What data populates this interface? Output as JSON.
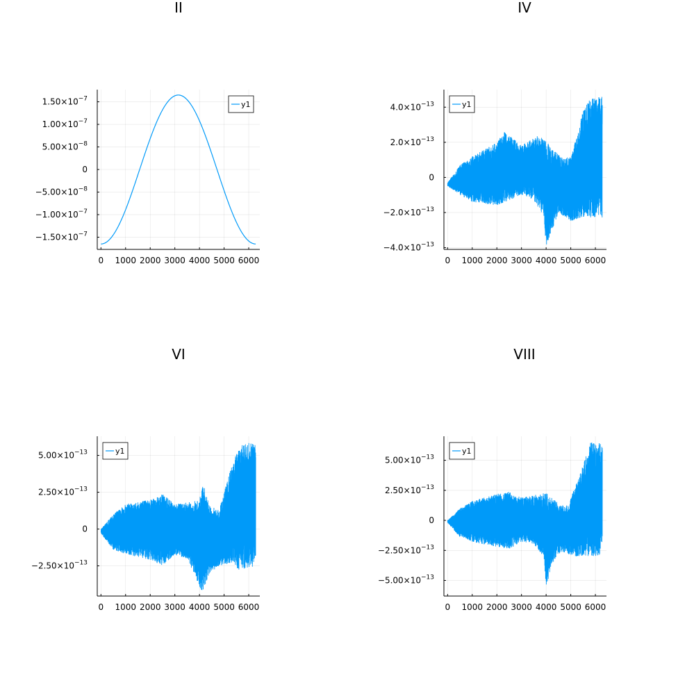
{
  "chart_data": [
    {
      "type": "line",
      "title": "II",
      "xlim": [
        -150,
        6450
      ],
      "ylim": [
        -1.77e-07,
        1.77e-07
      ],
      "x_ticks": [
        0,
        1000,
        2000,
        3000,
        4000,
        5000,
        6000
      ],
      "x_tick_labels": [
        "0",
        "1000",
        "2000",
        "3000",
        "4000",
        "5000",
        "6000"
      ],
      "y_ticks": [
        -1.5e-07,
        -1e-07,
        -5e-08,
        0,
        5e-08,
        1e-07,
        1.5e-07
      ],
      "y_tick_mantissas": [
        "−1.50×10",
        "−1.00×10",
        "−5.00×10",
        "0",
        "5.00×10",
        "1.00×10",
        "1.50×10"
      ],
      "y_tick_exponents": [
        "−7",
        "−7",
        "−8",
        "",
        "−8",
        "−7",
        "−7"
      ],
      "grid": true,
      "legend": "top-right",
      "series": [
        {
          "name": "y1",
          "kind": "cosine",
          "amplitude": 1.65e-07,
          "x_start": 0,
          "x_end": 6283,
          "color": "#009af9"
        }
      ]
    },
    {
      "type": "line",
      "title": "IV",
      "xlim": [
        -150,
        6450
      ],
      "ylim": [
        -4.1e-13,
        5e-13
      ],
      "x_ticks": [
        0,
        1000,
        2000,
        3000,
        4000,
        5000,
        6000
      ],
      "x_tick_labels": [
        "0",
        "1000",
        "2000",
        "3000",
        "4000",
        "5000",
        "6000"
      ],
      "y_ticks": [
        -4e-13,
        -2e-13,
        0,
        2e-13,
        4e-13
      ],
      "y_tick_mantissas": [
        "−4.0×10",
        "−2.0×10",
        "0",
        "2.0×10",
        "4.0×10"
      ],
      "y_tick_exponents": [
        "−13",
        "−13",
        "",
        "−13",
        "−13"
      ],
      "grid": true,
      "legend": "top-left",
      "series": [
        {
          "name": "y1",
          "kind": "noise_band",
          "x_start": 0,
          "x_end": 6283,
          "color": "#009af9",
          "upper_envelope": [
            [
              0,
              -3e-14
            ],
            [
              500,
              7e-14
            ],
            [
              1000,
              1.2e-13
            ],
            [
              2000,
              2e-13
            ],
            [
              2300,
              2.6e-13
            ],
            [
              2700,
              2.2e-13
            ],
            [
              3000,
              1.8e-13
            ],
            [
              3300,
              2.1e-13
            ],
            [
              3600,
              2.4e-13
            ],
            [
              3900,
              2.2e-13
            ],
            [
              4300,
              1.6e-13
            ],
            [
              4700,
              1.1e-13
            ],
            [
              5000,
              1.2e-13
            ],
            [
              5200,
              2.2e-13
            ],
            [
              5500,
              3.8e-13
            ],
            [
              5800,
              4.5e-13
            ],
            [
              6283,
              4.6e-13
            ]
          ],
          "lower_envelope": [
            [
              0,
              -5e-14
            ],
            [
              500,
              -1e-13
            ],
            [
              1000,
              -1.4e-13
            ],
            [
              2000,
              -1.6e-13
            ],
            [
              2500,
              -1.3e-13
            ],
            [
              3000,
              -1e-13
            ],
            [
              3500,
              -1.3e-13
            ],
            [
              3900,
              -2.2e-13
            ],
            [
              4000,
              -3.9e-13
            ],
            [
              4200,
              -3.2e-13
            ],
            [
              4500,
              -2e-13
            ],
            [
              5000,
              -2.5e-13
            ],
            [
              5400,
              -2.3e-13
            ],
            [
              6283,
              -2.3e-13
            ]
          ]
        }
      ]
    },
    {
      "type": "line",
      "title": "VI",
      "xlim": [
        -150,
        6450
      ],
      "ylim": [
        -4.55e-13,
        6.3e-13
      ],
      "x_ticks": [
        0,
        1000,
        2000,
        3000,
        4000,
        5000,
        6000
      ],
      "x_tick_labels": [
        "0",
        "1000",
        "2000",
        "3000",
        "4000",
        "5000",
        "6000"
      ],
      "y_ticks": [
        -2.5e-13,
        0,
        2.5e-13,
        5e-13
      ],
      "y_tick_mantissas": [
        "−2.50×10",
        "0",
        "2.50×10",
        "5.00×10"
      ],
      "y_tick_exponents": [
        "−13",
        "",
        "−13",
        "−13"
      ],
      "grid": true,
      "legend": "top-left",
      "series": [
        {
          "name": "y1",
          "kind": "noise_band",
          "x_start": 0,
          "x_end": 6283,
          "color": "#009af9",
          "upper_envelope": [
            [
              0,
              0
            ],
            [
              500,
              1e-13
            ],
            [
              1000,
              1.7e-13
            ],
            [
              2000,
              2e-13
            ],
            [
              2500,
              2.4e-13
            ],
            [
              3000,
              1.7e-13
            ],
            [
              3500,
              1.8e-13
            ],
            [
              4000,
              2e-13
            ],
            [
              4150,
              3.1e-13
            ],
            [
              4400,
              1.6e-13
            ],
            [
              4800,
              1.3e-13
            ],
            [
              5100,
              3.1e-13
            ],
            [
              5400,
              4.8e-13
            ],
            [
              5800,
              5.9e-13
            ],
            [
              6283,
              5.8e-13
            ]
          ],
          "lower_envelope": [
            [
              0,
              -3e-14
            ],
            [
              500,
              -1.4e-13
            ],
            [
              1000,
              -1.7e-13
            ],
            [
              2000,
              -2.1e-13
            ],
            [
              2500,
              -2.5e-13
            ],
            [
              3000,
              -1.8e-13
            ],
            [
              3500,
              -2e-13
            ],
            [
              3900,
              -3.5e-13
            ],
            [
              4100,
              -4.4e-13
            ],
            [
              4400,
              -3e-13
            ],
            [
              4800,
              -2.5e-13
            ],
            [
              5300,
              -2.3e-13
            ],
            [
              5600,
              -2.8e-13
            ],
            [
              6283,
              -2.5e-13
            ]
          ]
        }
      ]
    },
    {
      "type": "line",
      "title": "VIII",
      "xlim": [
        -150,
        6450
      ],
      "ylim": [
        -6.3e-13,
        7e-13
      ],
      "x_ticks": [
        0,
        1000,
        2000,
        3000,
        4000,
        5000,
        6000
      ],
      "x_tick_labels": [
        "0",
        "1000",
        "2000",
        "3000",
        "4000",
        "5000",
        "6000"
      ],
      "y_ticks": [
        -5e-13,
        -2.5e-13,
        0,
        2.5e-13,
        5e-13
      ],
      "y_tick_mantissas": [
        "−5.00×10",
        "−2.50×10",
        "0",
        "2.50×10",
        "5.00×10"
      ],
      "y_tick_exponents": [
        "−13",
        "−13",
        "",
        "−13",
        "−13"
      ],
      "grid": true,
      "legend": "top-left",
      "series": [
        {
          "name": "y1",
          "kind": "noise_band",
          "x_start": 0,
          "x_end": 6283,
          "color": "#009af9",
          "upper_envelope": [
            [
              0,
              0
            ],
            [
              500,
              1e-13
            ],
            [
              1000,
              1.6e-13
            ],
            [
              2000,
              2.2e-13
            ],
            [
              2500,
              2.4e-13
            ],
            [
              3000,
              1.9e-13
            ],
            [
              3500,
              2.1e-13
            ],
            [
              4000,
              2.3e-13
            ],
            [
              4400,
              1.6e-13
            ],
            [
              4800,
              1.1e-13
            ],
            [
              5100,
              2.4e-13
            ],
            [
              5500,
              4.6e-13
            ],
            [
              5800,
              6.5e-13
            ],
            [
              6283,
              6.4e-13
            ]
          ],
          "lower_envelope": [
            [
              0,
              -2e-14
            ],
            [
              500,
              -1.4e-13
            ],
            [
              1000,
              -1.8e-13
            ],
            [
              2000,
              -2.2e-13
            ],
            [
              2500,
              -2.4e-13
            ],
            [
              3000,
              -1.8e-13
            ],
            [
              3500,
              -2e-13
            ],
            [
              3900,
              -3e-13
            ],
            [
              4000,
              -5.9e-13
            ],
            [
              4200,
              -3.8e-13
            ],
            [
              4600,
              -2.6e-13
            ],
            [
              5200,
              -3e-13
            ],
            [
              6283,
              -3e-13
            ]
          ]
        }
      ]
    }
  ]
}
